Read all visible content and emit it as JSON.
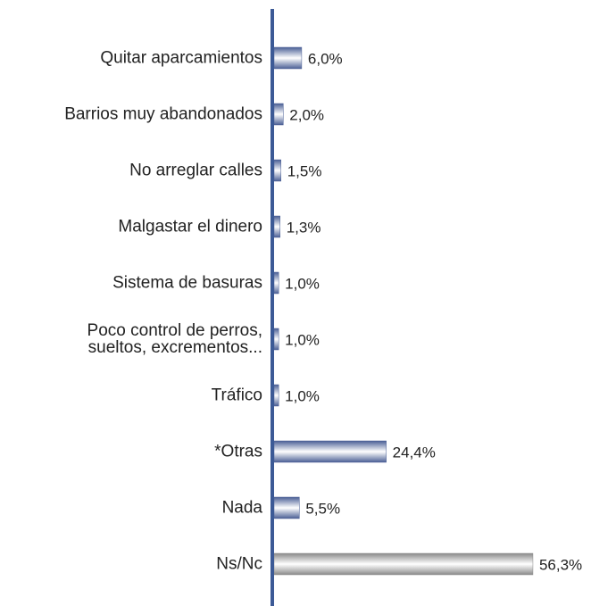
{
  "chart_data": {
    "type": "bar",
    "orientation": "horizontal",
    "categories": [
      "Quitar aparcamientos",
      "Barrios muy abandonados",
      "No arreglar calles",
      "Malgastar el dinero",
      "Sistema de basuras",
      "Poco control de perros,\nsueltos, excrementos...",
      "Tráfico",
      "*Otras",
      "Nada",
      "Ns/Nc"
    ],
    "values": [
      6.0,
      2.0,
      1.5,
      1.3,
      1.0,
      1.0,
      1.0,
      24.4,
      5.5,
      56.3
    ],
    "value_labels": [
      "6,0%",
      "2,0%",
      "1,5%",
      "1,3%",
      "1,0%",
      "1,0%",
      "1,0%",
      "24,4%",
      "5,5%",
      "56,3%"
    ],
    "colors": [
      "#4a5f95",
      "#4a5f95",
      "#4a5f95",
      "#4a5f95",
      "#4a5f95",
      "#4a5f95",
      "#4a5f95",
      "#4a5f95",
      "#4a5f95",
      "#8a8a8a"
    ],
    "xlim": [
      0,
      60
    ]
  }
}
